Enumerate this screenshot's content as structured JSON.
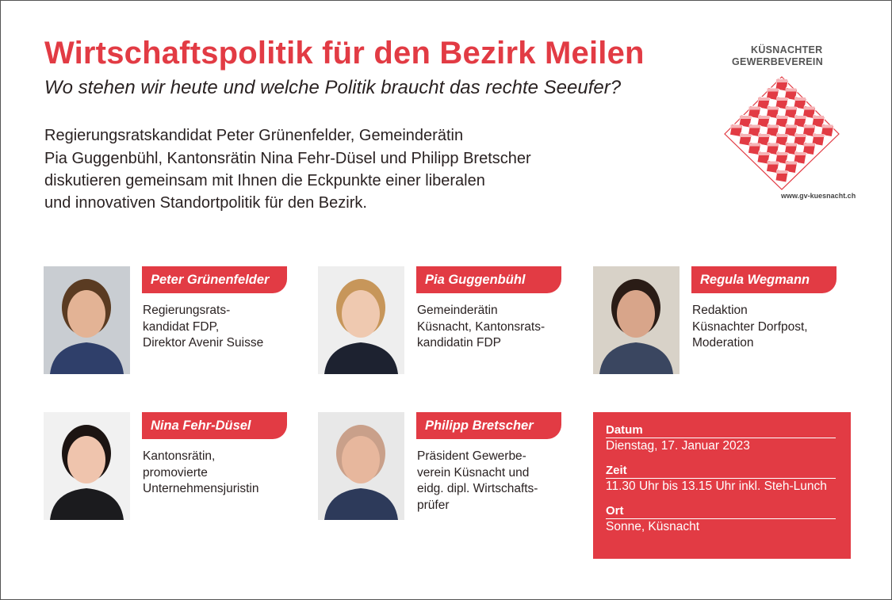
{
  "header": {
    "title": "Wirtschaftspolitik für den Bezirk Meilen",
    "subtitle": "Wo stehen wir heute und welche Politik braucht das rechte Seeufer?"
  },
  "intro": [
    "Regierungsratskandidat Peter Grünenfelder, Gemeinderätin",
    "Pia Guggenbühl, Kantonsrätin Nina Fehr-Düsel und Philipp Bretscher",
    "diskutieren gemeinsam mit Ihnen die Eckpunkte einer liberalen",
    "und innovativen Standortpolitik für den Bezirk."
  ],
  "logo": {
    "line1": "KÜSNACHTER",
    "line2": "GEWERBEVEREIN",
    "url": "www.gv-kuesnacht.ch"
  },
  "people": [
    {
      "name": "Peter Grünenfelder",
      "lines": [
        "Regierungsrats-",
        "kandidat FDP,",
        "Direktor  Avenir Suisse"
      ]
    },
    {
      "name": "Pia Guggenbühl",
      "lines": [
        "Gemeinderätin",
        "Küsnacht, Kantonsrats-",
        "kandidatin FDP"
      ]
    },
    {
      "name": "Regula Wegmann",
      "lines": [
        "Redaktion",
        "Küsnachter Dorfpost,",
        "Moderation"
      ]
    },
    {
      "name": "Nina Fehr-Düsel",
      "lines": [
        "Kantonsrätin,",
        "promovierte",
        "Unternehmensjuristin"
      ]
    },
    {
      "name": "Philipp Bretscher",
      "lines": [
        "Präsident Gewerbe-",
        "verein Küsnacht und",
        "eidg. dipl. Wirtschafts-",
        "prüfer"
      ]
    }
  ],
  "info": [
    {
      "label": "Datum",
      "value": "Dienstag, 17. Januar 2023"
    },
    {
      "label": "Zeit",
      "value": "11.30 Uhr bis 13.15 Uhr inkl. Steh-Lunch"
    },
    {
      "label": "Ort",
      "value": "Sonne, Küsnacht"
    }
  ]
}
